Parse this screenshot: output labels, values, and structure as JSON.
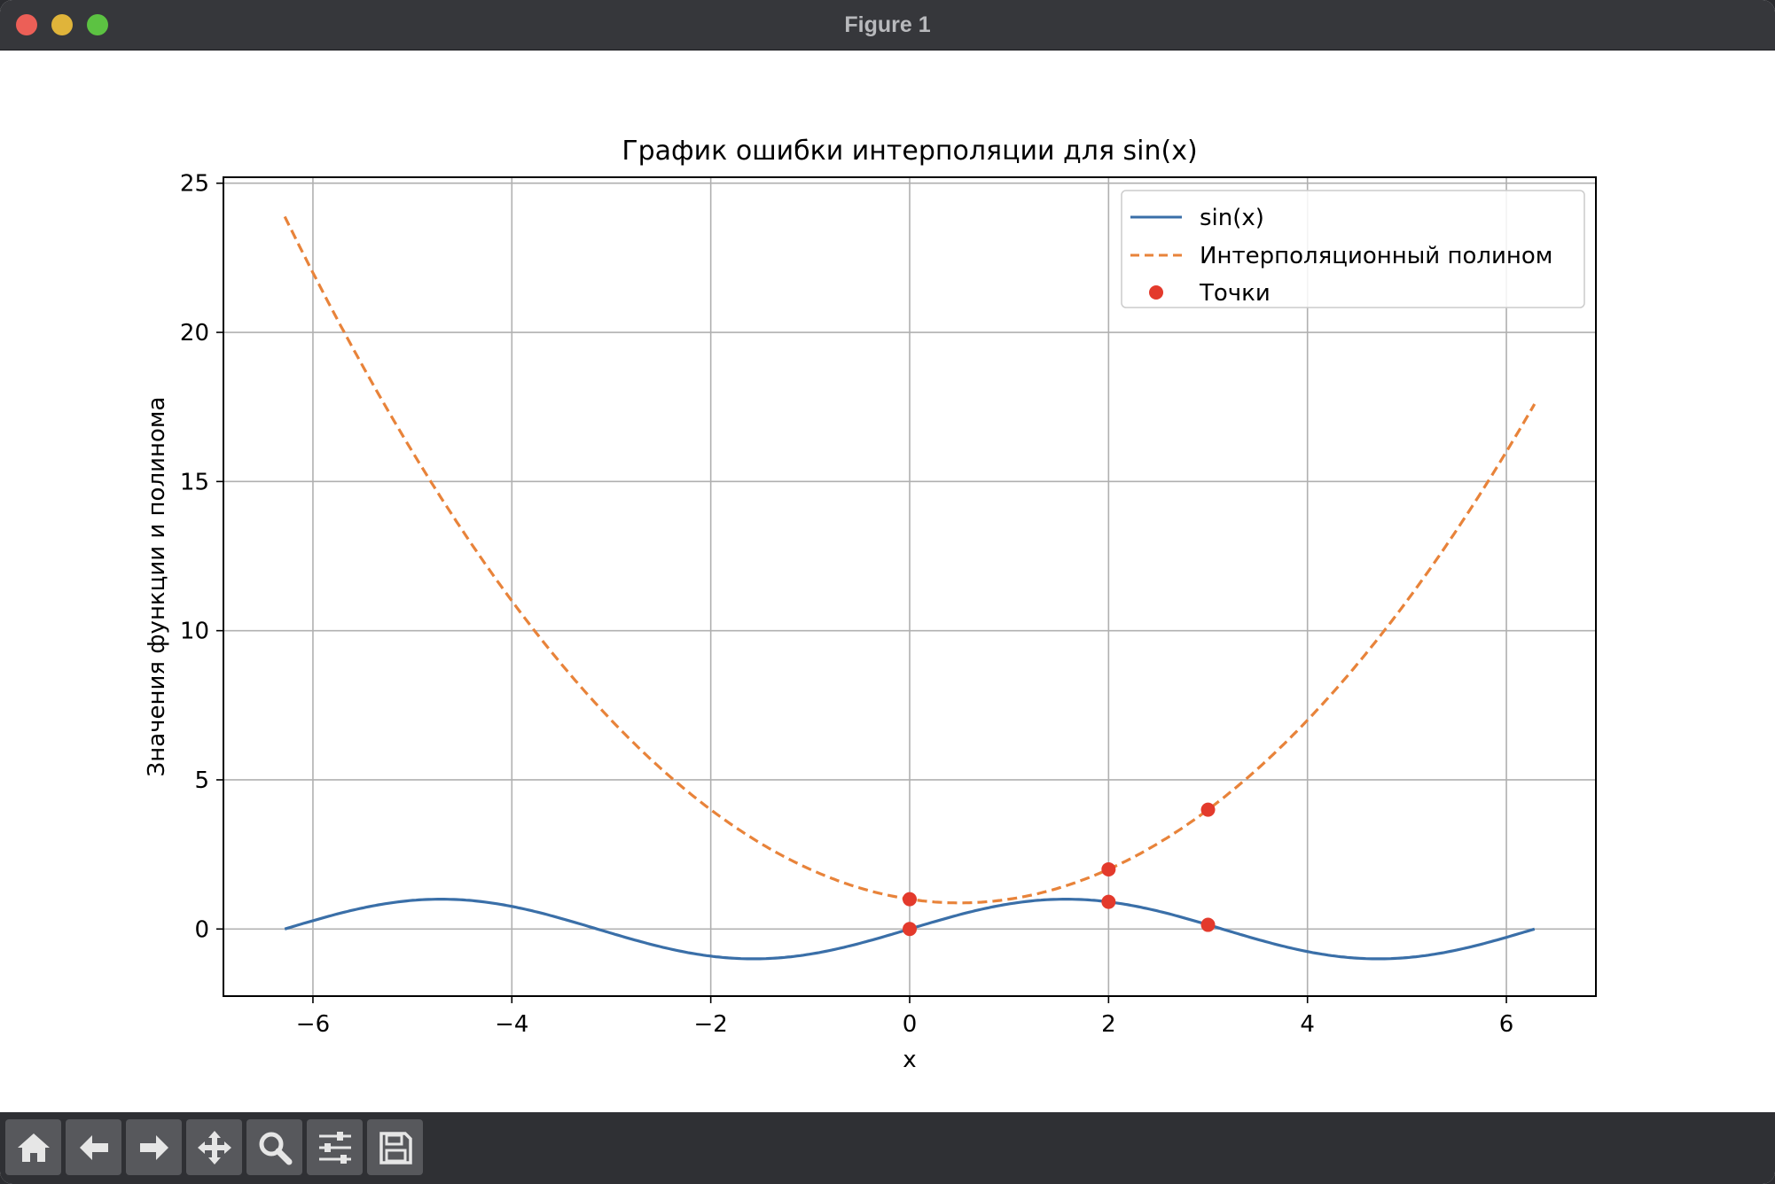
{
  "window": {
    "title": "Figure 1"
  },
  "toolbar": {
    "buttons": [
      {
        "icon": "home-icon"
      },
      {
        "icon": "back-arrow-icon"
      },
      {
        "icon": "forward-arrow-icon"
      },
      {
        "icon": "pan-move-icon"
      },
      {
        "icon": "zoom-magnifier-icon"
      },
      {
        "icon": "configure-subplots-icon"
      },
      {
        "icon": "save-floppy-icon"
      }
    ]
  },
  "chart_data": {
    "type": "line",
    "title": "График ошибки интерполяции для sin(x)",
    "xlabel": "x",
    "ylabel": "Значения функции и полинома",
    "xlim": [
      -6.9,
      6.9
    ],
    "ylim": [
      -2.25,
      25.2
    ],
    "xticks": [
      -6,
      -4,
      -2,
      0,
      2,
      4,
      6
    ],
    "xtick_labels": [
      "−6",
      "−4",
      "−2",
      "0",
      "2",
      "4",
      "6"
    ],
    "yticks": [
      0,
      5,
      10,
      15,
      20,
      25
    ],
    "ytick_labels": [
      "0",
      "5",
      "10",
      "15",
      "20",
      "25"
    ],
    "grid": true,
    "legend_position": "top-right",
    "series": [
      {
        "name": "sin(x)",
        "style": "solid",
        "color": "#3a6fa8",
        "x_range": [
          -6.283,
          6.283
        ],
        "function": "sin(x)",
        "x": [
          -6.28,
          -5.5,
          -4.71,
          -4.0,
          -3.14,
          -2.5,
          -1.57,
          -0.8,
          0.0,
          0.8,
          1.57,
          2.5,
          3.14,
          4.0,
          4.71,
          5.5,
          6.28
        ],
        "y": [
          0.0,
          0.71,
          1.0,
          0.76,
          0.0,
          -0.6,
          -1.0,
          -0.72,
          0.0,
          0.72,
          1.0,
          0.6,
          0.0,
          -0.76,
          -1.0,
          -0.71,
          0.0
        ]
      },
      {
        "name": "Интерполяционный полином",
        "style": "dashed",
        "color": "#e8833a",
        "x_range": [
          -6.283,
          6.283
        ],
        "function": "quadratic through (0,1), (2,2), (3,4)",
        "x": [
          -6.28,
          -5,
          -4,
          -2,
          0,
          0.5,
          2,
          3,
          4,
          6.28
        ],
        "y": [
          23.9,
          16.0,
          11.0,
          4.0,
          1.0,
          0.88,
          2.0,
          4.0,
          7.0,
          17.6
        ]
      },
      {
        "name": "Точки",
        "style": "markers",
        "color": "#e33a2c",
        "x": [
          0,
          2,
          3,
          0,
          2,
          3
        ],
        "y": [
          1,
          2,
          4,
          0,
          0.91,
          0.14
        ]
      }
    ]
  }
}
